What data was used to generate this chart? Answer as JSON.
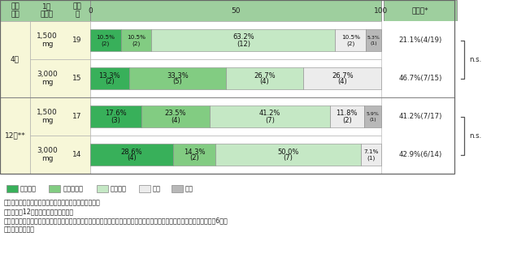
{
  "rows": [
    {
      "period_group": 0,
      "dose": "1,500\nmg",
      "n": 19,
      "segments": [
        10.5,
        10.5,
        63.2,
        10.5,
        5.3
      ],
      "counts": [
        2,
        2,
        12,
        2,
        1
      ],
      "improvement_rate": "21.1%(4/19)"
    },
    {
      "period_group": 0,
      "dose": "3,000\nmg",
      "n": 15,
      "segments": [
        13.3,
        33.3,
        26.7,
        26.7,
        0.0
      ],
      "counts": [
        2,
        5,
        4,
        4,
        0
      ],
      "improvement_rate": "46.7%(7/15)"
    },
    {
      "period_group": 1,
      "dose": "1,500\nmg",
      "n": 17,
      "segments": [
        17.6,
        23.5,
        41.2,
        11.8,
        5.9
      ],
      "counts": [
        3,
        4,
        7,
        2,
        1
      ],
      "improvement_rate": "41.2%(7/17)"
    },
    {
      "period_group": 1,
      "dose": "3,000\nmg",
      "n": 14,
      "segments": [
        28.6,
        14.3,
        50.0,
        7.1,
        0.0
      ],
      "counts": [
        4,
        2,
        7,
        1,
        0
      ],
      "improvement_rate": "42.9%(6/14)"
    }
  ],
  "period_labels": [
    "4週",
    "12週**"
  ],
  "segment_colors": [
    "#38b05a",
    "#82cc82",
    "#c5e8c5",
    "#ececec",
    "#b8b8b8"
  ],
  "segment_labels": [
    "著明改善",
    "中等度改善",
    "軽度改善",
    "不変",
    "悪化"
  ],
  "header_bg": "#9ecf9e",
  "period_bg": "#f7f7d8",
  "ns_label": "n.s.",
  "note1": "＊改善率：著明改善及び中等度改善を加えた症例の比率",
  "note2": "＊＊投与後12週間あるいは投与終了時",
  "note3": "評価基準：投与前と比較し、問診、診察及び症状日誌をもとに著明改善、中等度改善、軽度改善、不変、悪化、判定不能の6段階",
  "note4": "　　で評価した。"
}
